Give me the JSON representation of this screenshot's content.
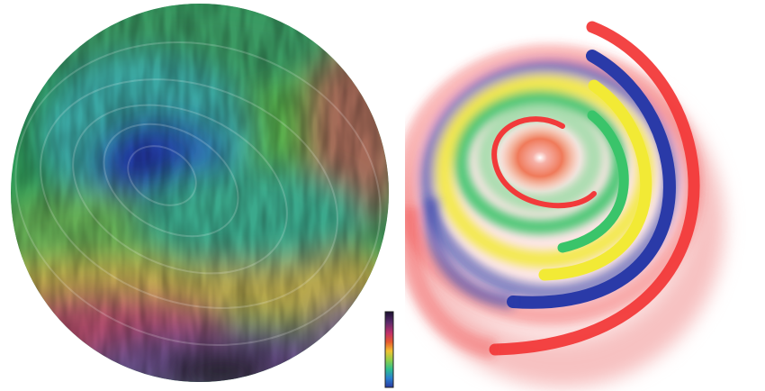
{
  "figure": {
    "panels": [
      {
        "id": "left",
        "kind": "flow-visualization-disc",
        "description_of_content": "",
        "color_scale": {
          "colors": [
            "#1a1030",
            "#5a2a6a",
            "#c0306a",
            "#e65a2e",
            "#f1c232",
            "#8fcf4a",
            "#2fbf8f",
            "#2a7fd0",
            "#2b3aa0"
          ]
        },
        "dominant_colors": [
          "#2d8f5a",
          "#3aa4a0",
          "#2a4aa8",
          "#c7a34a",
          "#b24a6a",
          "#6a4a8a",
          "#1b1b1b"
        ]
      },
      {
        "id": "right",
        "kind": "spiral-stream-visualization",
        "bands": [
          {
            "color": "#f23a3a"
          },
          {
            "color": "#2a3aa8"
          },
          {
            "color": "#f2ea35"
          },
          {
            "color": "#3ac46a"
          },
          {
            "color": "#f23a3a"
          }
        ]
      }
    ]
  }
}
